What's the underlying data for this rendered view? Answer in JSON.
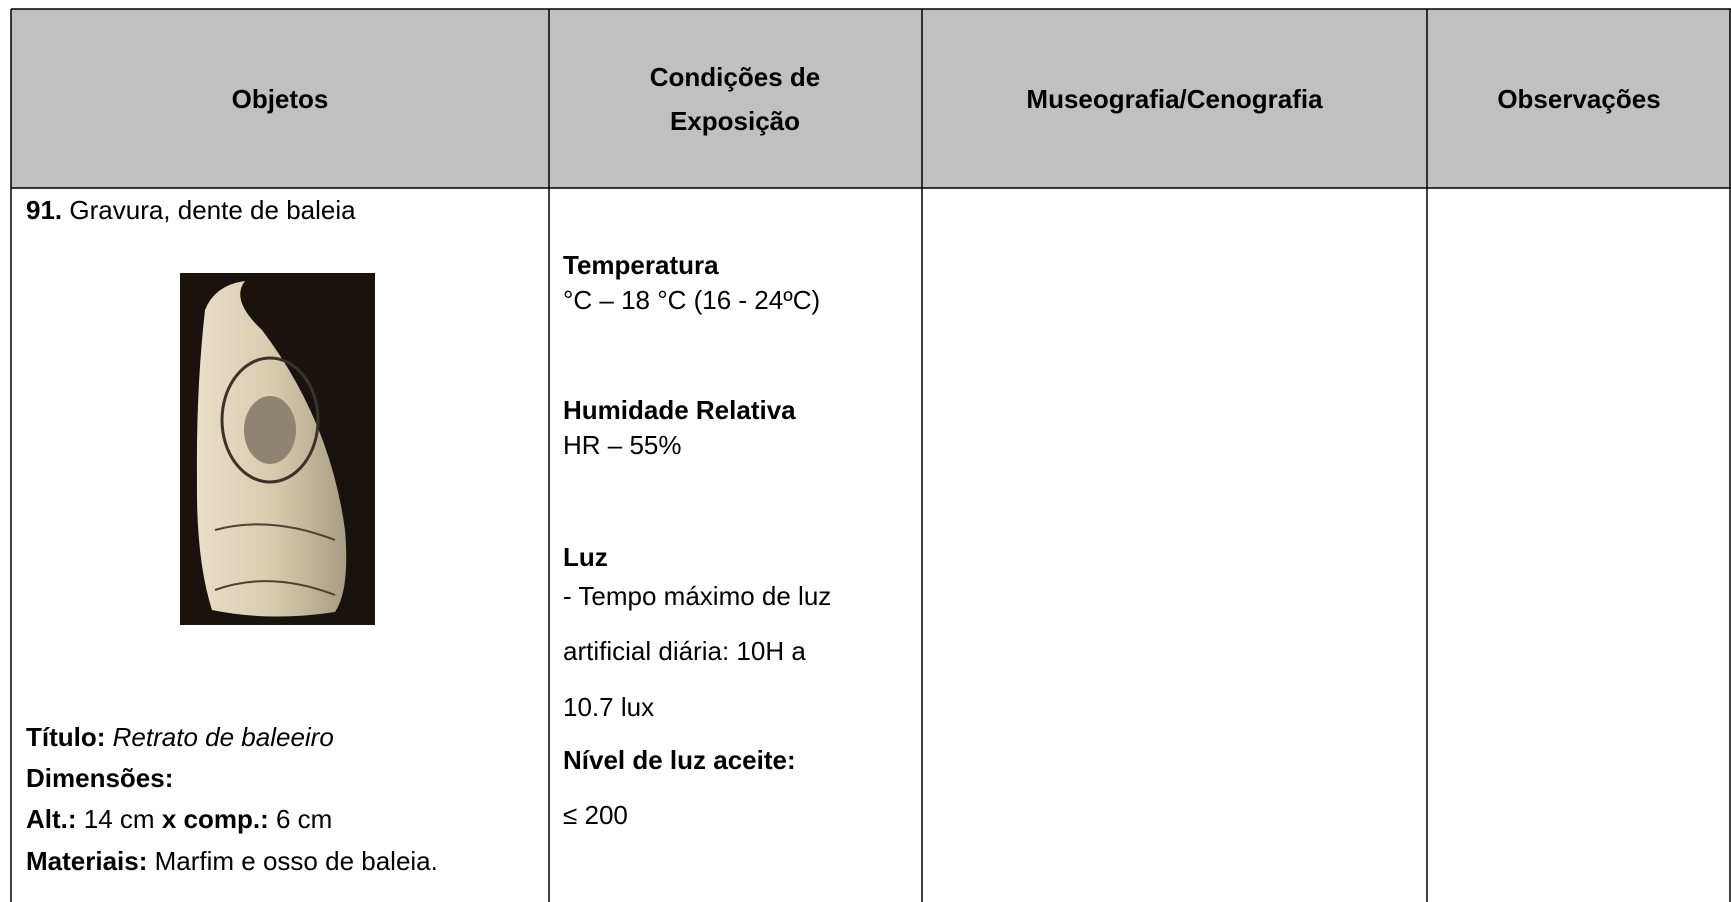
{
  "table": {
    "header": [
      "Objetos",
      "Condições de Exposição",
      "Museografia/Cenografia",
      "Observações"
    ],
    "object": {
      "number": "91.",
      "name": "Gravura, dente de baleia",
      "title_label": "Título:",
      "title": "Retrato de baleeiro",
      "dimensions_label": "Dimensões:",
      "height_label": "Alt.:",
      "height": "14 cm",
      "length_label": "x comp.:",
      "length": "6 cm",
      "materials_label": "Materiais:",
      "materials": "Marfim e osso de baleia."
    },
    "conditions": {
      "temperature_label": "Temperatura",
      "temperature": "°C – 18 °C (16 - 24ºC)",
      "humidity_label": "Humidade Relativa",
      "humidity": "HR – 55%",
      "light_label": "Luz",
      "light_lines": [
        "- Tempo máximo de luz",
        "artificial diária: 10H a",
        "10.7 lux"
      ],
      "light_level_label": "Nível de luz aceite:",
      "light_level": "≤ 200"
    }
  }
}
